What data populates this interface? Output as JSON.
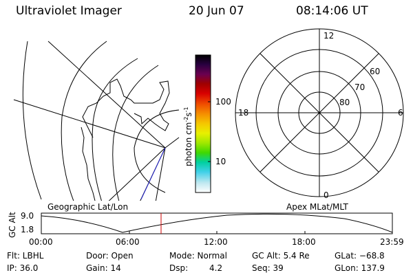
{
  "header": {
    "instrument": "Ultraviolet Imager",
    "date": "20 Jun 07",
    "time": "08:14:06 UT"
  },
  "colorbar": {
    "unit_label": "photon cm",
    "unit_exp1": "-2",
    "unit_mid": "s",
    "unit_exp2": "-1",
    "ticks": [
      "100",
      "10"
    ],
    "colors": [
      "#000000",
      "#2a0040",
      "#6a0050",
      "#a00000",
      "#d80000",
      "#f05000",
      "#f59000",
      "#f5c800",
      "#e8f000",
      "#a0e800",
      "#40d800",
      "#00d0a0",
      "#40d0e8",
      "#c0e8f0",
      "#ffffff"
    ]
  },
  "map_left": {
    "label": "Geographic Lat/Lon"
  },
  "map_right": {
    "label": "Apex MLat/MLT",
    "mlt_labels": {
      "top": "12",
      "left": "18",
      "right": "6",
      "bottom": "0"
    },
    "lat_labels": [
      "60",
      "70",
      "80"
    ]
  },
  "orbit": {
    "axis_label": "GC Alt",
    "y_ticks": [
      "9.0",
      "1.8"
    ],
    "x_ticks": [
      "00:00",
      "06:00",
      "12:00",
      "18:00",
      "23:59"
    ],
    "marker_color": "#cc0000"
  },
  "info": {
    "row1": {
      "flt": "Flt: LBHL",
      "door": "Door: Open",
      "mode": "Mode: Normal",
      "gcalt": "GC Alt: 5.4 Re",
      "glat": "GLat: −68.8"
    },
    "row2": {
      "ip": "IP: 36.0",
      "gain": "Gain: 14",
      "dsp_label": "Dsp:",
      "dsp_value": "4.2",
      "seq": "Seq: 39",
      "glon": "GLon: 137.9"
    }
  }
}
